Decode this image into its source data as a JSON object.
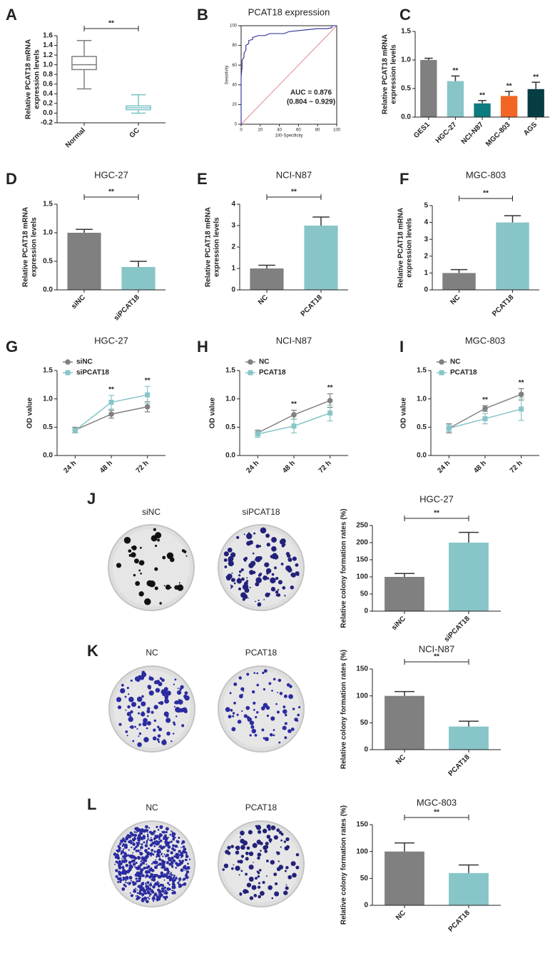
{
  "chart_data": [
    {
      "panel": "A",
      "type": "box",
      "categories": [
        "Normal",
        "GC"
      ],
      "stats": [
        [
          0.5,
          0.9,
          1.0,
          1.17,
          1.5
        ],
        [
          0.0,
          0.07,
          0.11,
          0.15,
          0.38
        ]
      ],
      "colors": [
        "#7f7f7f",
        "#7ec4c8"
      ],
      "ylabel": [
        "Relative PCAT18 mRNA",
        "expression levels"
      ],
      "ylim": [
        -0.2,
        1.6
      ],
      "yticks": [
        -0.2,
        {
          "value": 0,
          "label": "0.0"
        },
        0.2,
        0.4,
        0.6,
        0.8,
        {
          "value": 1,
          "label": "1.0"
        },
        1.2,
        1.4,
        1.6
      ],
      "significance": "**"
    },
    {
      "panel": "B",
      "type": "roc",
      "title": "PCAT18 expression",
      "x": [
        0,
        0,
        1,
        1,
        3,
        3,
        5,
        5,
        8,
        8,
        12,
        12,
        18,
        25,
        30,
        45,
        50,
        60,
        70,
        80,
        90,
        95,
        95,
        100
      ],
      "y": [
        0,
        48,
        58,
        65,
        68,
        72,
        75,
        80,
        82,
        85,
        86,
        88,
        90,
        90,
        92,
        92,
        94,
        95,
        96,
        97,
        97,
        98,
        100,
        100
      ],
      "color": "#3b3fa0",
      "reference_color": "#e0898f",
      "xlabel": "100-Specificity",
      "ylabel": "Sensitivity",
      "xlim": [
        0,
        100
      ],
      "ylim": [
        0,
        100
      ],
      "xticks": [
        0,
        20,
        40,
        60,
        80,
        100
      ],
      "yticks": [
        0,
        20,
        40,
        60,
        80,
        100
      ],
      "auc_text": [
        "AUC = 0.876",
        "(0.804 ~ 0.929)"
      ]
    },
    {
      "panel": "C",
      "type": "bar",
      "categories": [
        "GES1",
        "HGC-27",
        "NCI-N87",
        "MGC-803",
        "AGS"
      ],
      "values": [
        1.0,
        0.63,
        0.24,
        0.37,
        0.49
      ],
      "errors": [
        0.03,
        0.09,
        0.05,
        0.08,
        0.12
      ],
      "colors": [
        "#808080",
        "#87c5c8",
        "#0e7b7e",
        "#f26522",
        "#053d43"
      ],
      "annotations": [
        null,
        "**",
        "**",
        "**",
        "**"
      ],
      "ylabel": [
        "Relative PCAT18 mRNA",
        "expression levels"
      ],
      "ylim": [
        0,
        1.5
      ],
      "yticks": [
        {
          "value": 0,
          "label": "0.0"
        },
        0.5,
        {
          "value": 1,
          "label": "1.0"
        },
        1.5
      ]
    },
    {
      "panel": "D",
      "type": "bar",
      "title": "HGC-27",
      "categories": [
        "siNC",
        "siPCAT18"
      ],
      "values": [
        1.0,
        0.4
      ],
      "errors": [
        0.06,
        0.1
      ],
      "colors": [
        "#808080",
        "#87c5c8"
      ],
      "ylabel": [
        "Relative PCAT18 mRNA",
        "expression levels"
      ],
      "ylim": [
        0,
        1.5
      ],
      "yticks": [
        {
          "value": 0,
          "label": "0.0"
        },
        0.5,
        {
          "value": 1,
          "label": "1.0"
        },
        1.5
      ],
      "significance": "**"
    },
    {
      "panel": "E",
      "type": "bar",
      "title": "NCI-N87",
      "categories": [
        "NC",
        "PCAT18"
      ],
      "values": [
        1.0,
        3.0
      ],
      "errors": [
        0.15,
        0.4
      ],
      "colors": [
        "#808080",
        "#87c5c8"
      ],
      "ylabel": [
        "Relative PCAT18 mRNA",
        "expression levels"
      ],
      "ylim": [
        0,
        4
      ],
      "yticks": [
        0,
        1,
        2,
        3,
        4
      ],
      "significance": "**"
    },
    {
      "panel": "F",
      "type": "bar",
      "title": "MGC-803",
      "categories": [
        "NC",
        "PCAT18"
      ],
      "values": [
        1.0,
        4.0
      ],
      "errors": [
        0.2,
        0.4
      ],
      "colors": [
        "#808080",
        "#87c5c8"
      ],
      "ylabel": [
        "Relative PCAT18 mRNA",
        "expression levels"
      ],
      "ylim": [
        0,
        5
      ],
      "yticks": [
        0,
        1,
        2,
        3,
        4,
        5
      ],
      "significance": "**"
    },
    {
      "panel": "G",
      "type": "line",
      "title": "HGC-27",
      "categories": [
        "24 h",
        "48 h",
        "72 h"
      ],
      "series": [
        {
          "name": "siNC",
          "color": "#808080",
          "marker": "circle",
          "values": [
            0.45,
            0.73,
            0.86
          ],
          "errors": [
            0.05,
            0.07,
            0.09
          ]
        },
        {
          "name": "siPCAT18",
          "color": "#87c5c8",
          "marker": "square",
          "values": [
            0.44,
            0.94,
            1.07
          ],
          "errors": [
            0.04,
            0.12,
            0.15
          ]
        }
      ],
      "annotations": [
        null,
        "**",
        "**"
      ],
      "ylabel": "OD value",
      "ylim": [
        0,
        1.5
      ],
      "yticks": [
        {
          "value": 0,
          "label": "0.0"
        },
        0.5,
        {
          "value": 1,
          "label": "1.0"
        },
        1.5
      ]
    },
    {
      "panel": "H",
      "type": "line",
      "title": "NCI-N87",
      "categories": [
        "24 h",
        "48 h",
        "72 h"
      ],
      "series": [
        {
          "name": "NC",
          "color": "#808080",
          "marker": "circle",
          "values": [
            0.4,
            0.72,
            0.97
          ],
          "errors": [
            0.05,
            0.08,
            0.12
          ]
        },
        {
          "name": "PCAT18",
          "color": "#87c5c8",
          "marker": "square",
          "values": [
            0.38,
            0.52,
            0.75
          ],
          "errors": [
            0.06,
            0.12,
            0.14
          ]
        }
      ],
      "annotations": [
        null,
        "**",
        "**"
      ],
      "ylabel": "OD value",
      "ylim": [
        0,
        1.5
      ],
      "yticks": [
        {
          "value": 0,
          "label": "0.0"
        },
        0.5,
        {
          "value": 1,
          "label": "1.0"
        },
        1.5
      ]
    },
    {
      "panel": "I",
      "type": "line",
      "title": "MGC-803",
      "categories": [
        "24 h",
        "48 h",
        "72 h"
      ],
      "series": [
        {
          "name": "NC",
          "color": "#808080",
          "marker": "circle",
          "values": [
            0.48,
            0.83,
            1.08
          ],
          "errors": [
            0.08,
            0.05,
            0.1
          ]
        },
        {
          "name": "PCAT18",
          "color": "#87c5c8",
          "marker": "square",
          "values": [
            0.48,
            0.65,
            0.82
          ],
          "errors": [
            0.06,
            0.09,
            0.2
          ]
        }
      ],
      "annotations": [
        null,
        "**",
        "**"
      ],
      "ylabel": "OD value",
      "ylim": [
        0,
        1.5
      ],
      "yticks": [
        {
          "value": 0,
          "label": "0.0"
        },
        0.5,
        {
          "value": 1,
          "label": "1.0"
        },
        1.5
      ]
    },
    {
      "panel": "J",
      "type": "bar",
      "title": "HGC-27",
      "plate_labels": [
        "siNC",
        "siPCAT18"
      ],
      "categories": [
        "siNC",
        "siPCAT18"
      ],
      "values": [
        100,
        200
      ],
      "errors": [
        10,
        30
      ],
      "colors": [
        "#808080",
        "#87c5c8"
      ],
      "ylabel": "Relative colony formation rates (%)",
      "ylim": [
        0,
        250
      ],
      "yticks": [
        0,
        50,
        100,
        150,
        200,
        250
      ],
      "significance": "**"
    },
    {
      "panel": "K",
      "type": "bar",
      "title": "NCI-N87",
      "plate_labels": [
        "NC",
        "PCAT18"
      ],
      "categories": [
        "NC",
        "PCAT18"
      ],
      "values": [
        100,
        43
      ],
      "errors": [
        8,
        10
      ],
      "colors": [
        "#808080",
        "#87c5c8"
      ],
      "ylabel": "Relative colony formation rates (%)",
      "ylim": [
        0,
        150
      ],
      "yticks": [
        0,
        50,
        100,
        150
      ],
      "significance": "**"
    },
    {
      "panel": "L",
      "type": "bar",
      "title": "MGC-803",
      "plate_labels": [
        "NC",
        "PCAT18"
      ],
      "categories": [
        "NC",
        "PCAT18"
      ],
      "values": [
        100,
        60
      ],
      "errors": [
        16,
        15
      ],
      "colors": [
        "#808080",
        "#87c5c8"
      ],
      "ylabel": "Relative colony formation rates (%)",
      "ylim": [
        0,
        150
      ],
      "yticks": [
        0,
        50,
        100,
        150
      ],
      "significance": "**"
    }
  ]
}
